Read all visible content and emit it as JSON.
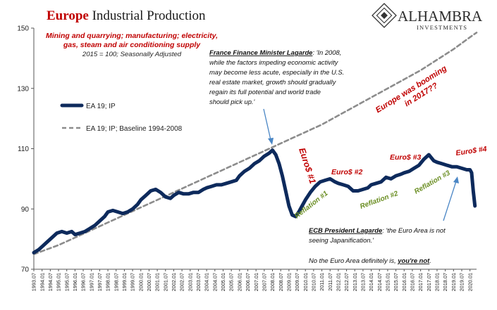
{
  "chart_data": {
    "type": "line",
    "title_part1": "Europe",
    "title_part2": " Industrial Production",
    "subtitle_lines": [
      "Mining and quarrying; manufacturing; electricity,",
      "gas, steam and air conditioning supply"
    ],
    "base_note": "2015 = 100; Seasonally Adjusted",
    "ylim": [
      70,
      150
    ],
    "yticks": [
      70,
      90,
      110,
      130,
      150
    ],
    "xticks": [
      "1993.07",
      "1994.01",
      "1994.07",
      "1995.01",
      "1995.07",
      "1996.01",
      "1996.07",
      "1997.01",
      "1997.07",
      "1998.01",
      "1998.07",
      "1999.01",
      "1999.07",
      "2000.01",
      "2000.07",
      "2001.01",
      "2001.07",
      "2002.01",
      "2002.07",
      "2003.01",
      "2003.07",
      "2004.01",
      "2004.07",
      "2005.01",
      "2005.07",
      "2006.01",
      "2006.07",
      "2007.01",
      "2007.07",
      "2008.01",
      "2008.07",
      "2009.01",
      "2009.07",
      "2010.01",
      "2010.07",
      "2011.01",
      "2011.07",
      "2012.01",
      "2012.07",
      "2013.01",
      "2013.07",
      "2014.01",
      "2014.07",
      "2015.01",
      "2015.07",
      "2016.01",
      "2016.07",
      "2017.01",
      "2017.07",
      "2018.01",
      "2018.07",
      "2019.01",
      "2019.07",
      "2020.01"
    ],
    "x_start": 1993.5,
    "x_end": 2020.4,
    "grid": false,
    "legend_position": "left",
    "series": [
      {
        "name": "EA 19; IP",
        "color": "#0d2a5c",
        "style": "solid",
        "x": [
          1993.5,
          1993.8,
          1994.0,
          1994.3,
          1994.6,
          1994.9,
          1995.2,
          1995.5,
          1995.8,
          1996.0,
          1996.3,
          1996.6,
          1996.9,
          1997.2,
          1997.5,
          1997.8,
          1998.0,
          1998.3,
          1998.6,
          1998.9,
          1999.2,
          1999.5,
          1999.8,
          2000.0,
          2000.3,
          2000.6,
          2000.9,
          2001.2,
          2001.5,
          2001.8,
          2002.0,
          2002.3,
          2002.6,
          2002.9,
          2003.2,
          2003.5,
          2003.8,
          2004.0,
          2004.3,
          2004.6,
          2004.9,
          2005.2,
          2005.5,
          2005.8,
          2006.0,
          2006.3,
          2006.6,
          2006.9,
          2007.2,
          2007.5,
          2007.8,
          2008.0,
          2008.2,
          2008.4,
          2008.6,
          2008.8,
          2009.0,
          2009.2,
          2009.4,
          2009.6,
          2009.8,
          2010.0,
          2010.3,
          2010.6,
          2010.9,
          2011.2,
          2011.5,
          2011.8,
          2012.0,
          2012.3,
          2012.6,
          2012.9,
          2013.2,
          2013.5,
          2013.8,
          2014.0,
          2014.3,
          2014.6,
          2014.9,
          2015.2,
          2015.5,
          2015.8,
          2016.0,
          2016.3,
          2016.6,
          2016.9,
          2017.2,
          2017.5,
          2017.8,
          2018.0,
          2018.3,
          2018.6,
          2018.9,
          2019.2,
          2019.5,
          2019.8,
          2020.0,
          2020.1,
          2020.2,
          2020.3
        ],
        "y": [
          75.5,
          76.5,
          77.5,
          79.0,
          80.5,
          82.0,
          82.5,
          82.0,
          82.5,
          81.5,
          82.0,
          82.5,
          83.5,
          84.5,
          86.0,
          87.5,
          89.0,
          89.5,
          89.0,
          88.5,
          89.0,
          90.0,
          91.5,
          93.0,
          94.5,
          96.0,
          96.5,
          95.5,
          94.0,
          93.5,
          94.5,
          95.5,
          95.0,
          95.0,
          95.5,
          95.5,
          96.5,
          97.0,
          97.5,
          98.0,
          98.0,
          98.5,
          99.0,
          99.5,
          101.0,
          102.5,
          103.5,
          105.0,
          106.0,
          107.5,
          108.5,
          109.5,
          108.0,
          105.0,
          101.0,
          96.0,
          91.0,
          88.0,
          87.5,
          89.0,
          91.0,
          93.0,
          95.5,
          97.5,
          99.0,
          99.5,
          100.0,
          99.0,
          98.5,
          98.0,
          97.5,
          96.0,
          96.0,
          96.5,
          97.0,
          98.0,
          98.5,
          99.0,
          100.5,
          100.0,
          101.0,
          101.5,
          102.0,
          102.5,
          103.5,
          104.5,
          106.5,
          108.0,
          106.0,
          105.5,
          105.0,
          104.5,
          104.0,
          104.0,
          103.5,
          103.0,
          103.0,
          102.0,
          96.0,
          91.0
        ]
      },
      {
        "name": "EA 19; IP; Baseline 1994-2008",
        "color": "#8c8c8c",
        "style": "dashed",
        "x": [
          1993.5,
          1994.0,
          1995.0,
          1996.0,
          1997.0,
          1998.0,
          1999.0,
          2000.0,
          2001.0,
          2002.0,
          2003.0,
          2004.0,
          2005.0,
          2006.0,
          2007.0,
          2008.0,
          2009.0,
          2010.0,
          2011.0,
          2012.0,
          2013.0,
          2014.0,
          2015.0,
          2016.0,
          2017.0,
          2018.0,
          2019.0,
          2020.0,
          2020.4
        ],
        "y": [
          75.0,
          76.0,
          78.0,
          80.5,
          83.0,
          85.5,
          88.0,
          90.5,
          93.0,
          95.5,
          98.0,
          100.5,
          103.0,
          105.5,
          108.0,
          110.5,
          113.0,
          115.5,
          118.0,
          121.0,
          124.0,
          127.0,
          130.0,
          133.0,
          136.0,
          139.5,
          143.0,
          147.0,
          148.5
        ]
      }
    ],
    "annotations": {
      "lagarde_2008_label": "France Finance Minister Lagarde",
      "lagarde_2008_quote_lines": [
        ": 'In 2008,",
        "while the factors impeding economic activity",
        "may become less acute, especially in the U.S.",
        "real estate market, growth should gradually",
        "regain its full potential and world trade",
        "should pick up.'"
      ],
      "booming": [
        "Europe was booming",
        "in 2017??"
      ],
      "euro_1": "Euro$ #1",
      "euro_2": "Euro$ #2",
      "euro_3": "Euro$ #3",
      "euro_4": "Euro$ #4",
      "reflation_1": "Reflation #1",
      "reflation_2": "Reflation #2",
      "reflation_3": "Reflation #3",
      "ecb_label": "ECB President Lagarde",
      "ecb_quote_lines": [
        ": 'the Euro Area is not",
        "seeing Japanification.'"
      ],
      "final_pre": "No the Euro Area definitely is, ",
      "final_emph": "you're not",
      "final_post": "."
    },
    "colors": {
      "title_red": "#c00000",
      "annotation_red": "#c00000",
      "reflation_green": "#6b8e23",
      "arrow_blue": "#4a86c5"
    }
  },
  "logo": {
    "name": "ALHAMBRA",
    "tagline": "INVESTMENTS"
  }
}
